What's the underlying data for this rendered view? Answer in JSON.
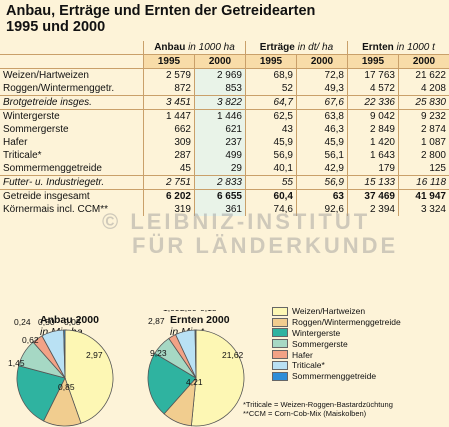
{
  "title_line1": "Anbau, Erträge und Ernten der Getreidearten",
  "title_line2": "1995 und 2000",
  "groups": [
    {
      "bold": "Anbau",
      "unit": "in 1000 ha"
    },
    {
      "bold": "Erträge",
      "unit": "in dt/ ha"
    },
    {
      "bold": "Ernten",
      "unit": "in 1000 t"
    }
  ],
  "years": [
    "1995",
    "2000",
    "1995",
    "2000",
    "1995",
    "2000"
  ],
  "rows": [
    {
      "label": "Weizen/Hartweizen",
      "v": [
        "2 579",
        "2 969",
        "68,9",
        "72,8",
        "17 763",
        "21 622"
      ],
      "style": "normal"
    },
    {
      "label": "Roggen/Wintermenggetr.",
      "v": [
        "872",
        "853",
        "52",
        "49,3",
        "4 572",
        "4 208"
      ],
      "style": "normal"
    },
    {
      "label": "Brotgetreide insges.",
      "v": [
        "3 451",
        "3 822",
        "64,7",
        "67,6",
        "22 336",
        "25 830"
      ],
      "style": "italic"
    },
    {
      "label": "Wintergerste",
      "v": [
        "1 447",
        "1 446",
        "62,5",
        "63,8",
        "9 042",
        "9 232"
      ],
      "style": "normal"
    },
    {
      "label": "Sommergerste",
      "v": [
        "662",
        "621",
        "43",
        "46,3",
        "2 849",
        "2 874"
      ],
      "style": "normal"
    },
    {
      "label": "Hafer",
      "v": [
        "309",
        "237",
        "45,9",
        "45,9",
        "1 420",
        "1 087"
      ],
      "style": "normal"
    },
    {
      "label": "Triticale*",
      "v": [
        "287",
        "499",
        "56,9",
        "56,1",
        "1 643",
        "2 800"
      ],
      "style": "normal"
    },
    {
      "label": "Sommermenggetreide",
      "v": [
        "45",
        "29",
        "40,1",
        "42,9",
        "179",
        "125"
      ],
      "style": "normal"
    },
    {
      "label": "Futter- u. Industriegetr.",
      "v": [
        "2 751",
        "2 833",
        "55",
        "56,9",
        "15 133",
        "16 118"
      ],
      "style": "italic"
    },
    {
      "label": "Getreide insgesamt",
      "v": [
        "6 202",
        "6 655",
        "60,4",
        "63",
        "37 469",
        "41 947"
      ],
      "style": "bold"
    },
    {
      "label": "Körnermais incl. CCM**",
      "v": [
        "319",
        "361",
        "74,6",
        "92,6",
        "2 394",
        "3 324"
      ],
      "style": "normal"
    }
  ],
  "watermark_line1": "© LEIBNIZ-INSTITUT",
  "watermark_line2": "FÜR LÄNDERKUNDE",
  "chart_data": [
    {
      "type": "pie",
      "title": "Anbau 2000",
      "subtitle": "in Mio.ha",
      "categories": [
        "Weizen/Hartweizen",
        "Roggen/Wintermenggetreide",
        "Wintergerste",
        "Sommergerste",
        "Hafer",
        "Triticale*",
        "Sommermenggetreide"
      ],
      "values": [
        2.97,
        0.85,
        1.45,
        0.62,
        0.24,
        0.5,
        0.03
      ],
      "value_labels": [
        "2,97",
        "0,85",
        "1,45",
        "0,62",
        "0,24",
        "0,50",
        "0,03"
      ]
    },
    {
      "type": "pie",
      "title": "Ernten 2000",
      "subtitle": "in Mio.t",
      "categories": [
        "Weizen/Hartweizen",
        "Roggen/Wintermenggetreide",
        "Wintergerste",
        "Sommergerste",
        "Hafer",
        "Triticale*",
        "Sommermenggetreide"
      ],
      "values": [
        21.62,
        4.21,
        9.23,
        2.87,
        1.09,
        2.8,
        0.13
      ],
      "value_labels": [
        "21,62",
        "4,21",
        "9,23",
        "2,87",
        "1,09",
        "2,80",
        "0,13"
      ]
    }
  ],
  "colors": [
    "#fdf7b4",
    "#f1cd8f",
    "#2fb3a0",
    "#a6d8c4",
    "#f2a286",
    "#b9e1f4",
    "#2e8ed8"
  ],
  "legend": [
    "Weizen/Hartweizen",
    "Roggen/Wintermenggetreide",
    "Wintergerste",
    "Sommergerste",
    "Hafer",
    "Triticale*",
    "Sommermenggetreide"
  ],
  "notes": [
    "*Triticale = Weizen-Roggen-Bastardzüchtung",
    "**CCM = Corn-Cob-Mix (Maiskolben)"
  ]
}
